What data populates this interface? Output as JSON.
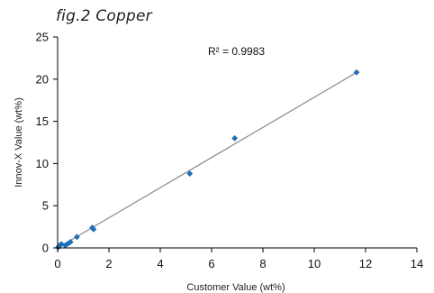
{
  "figure_title": "fig.2 Copper",
  "chart_data": {
    "type": "scatter",
    "title": "fig.2 Copper",
    "xlabel": "Customer Value (wt%)",
    "ylabel": "Innov-X Value (wt%)",
    "xlim": [
      0,
      14
    ],
    "ylim": [
      0,
      25
    ],
    "x_ticks": [
      "0",
      "2",
      "4",
      "6",
      "8",
      "10",
      "12",
      "14"
    ],
    "y_ticks": [
      "0",
      "5",
      "10",
      "15",
      "20",
      "25"
    ],
    "annotation": "R² = 0.9983",
    "grid": false,
    "points": [
      {
        "x": 0.02,
        "y": 0.05
      },
      {
        "x": 0.05,
        "y": 0.2
      },
      {
        "x": 0.1,
        "y": 0.35
      },
      {
        "x": 0.15,
        "y": 0.45
      },
      {
        "x": 0.3,
        "y": 0.3
      },
      {
        "x": 0.4,
        "y": 0.5
      },
      {
        "x": 0.5,
        "y": 0.7
      },
      {
        "x": 0.75,
        "y": 1.3
      },
      {
        "x": 1.35,
        "y": 2.4
      },
      {
        "x": 1.4,
        "y": 2.2
      },
      {
        "x": 5.15,
        "y": 8.8
      },
      {
        "x": 6.9,
        "y": 13.0
      },
      {
        "x": 11.65,
        "y": 20.8
      }
    ],
    "trendline": {
      "x0": 0,
      "y0": 0,
      "x1": 11.65,
      "y1": 20.8
    },
    "colors": {
      "points": "#1f6fb8",
      "trendline": "#8a8a8a",
      "axis": "#000000"
    }
  }
}
